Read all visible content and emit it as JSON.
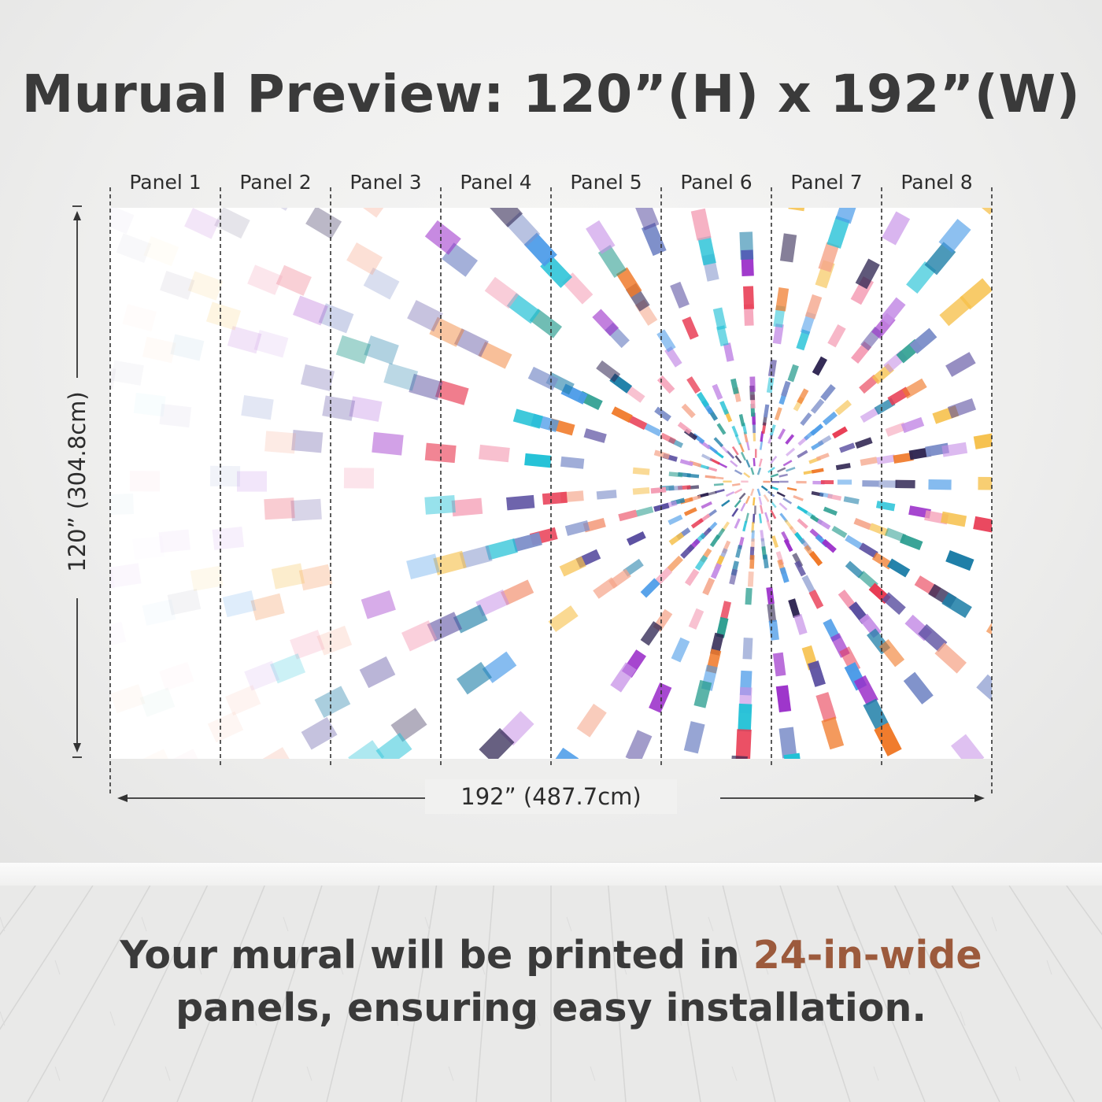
{
  "title": "Murual Preview: 120”(H) x 192”(W)",
  "panels": [
    {
      "label": "Panel 1"
    },
    {
      "label": "Panel 2"
    },
    {
      "label": "Panel 3"
    },
    {
      "label": "Panel 4"
    },
    {
      "label": "Panel 5"
    },
    {
      "label": "Panel 6"
    },
    {
      "label": "Panel 7"
    },
    {
      "label": "Panel 8"
    }
  ],
  "dimensions": {
    "height_label": "120” (304.8cm)",
    "width_label": "192” (487.7cm)"
  },
  "caption": {
    "part1": "Your mural will be printed in ",
    "highlight": "24-in-wide",
    "part2": " panels, ensuring easy installation."
  },
  "colors": {
    "text": "#3a3a3a",
    "accent": "#9c5a3c",
    "palette": [
      "#9b2fc9",
      "#e83a52",
      "#1f7fa8",
      "#f07a2a",
      "#2d2350",
      "#f6c04a",
      "#22c1d6",
      "#7d8fc9",
      "#f5a58a",
      "#c58ee6",
      "#4b9be8",
      "#f49cb4",
      "#2a9d8f",
      "#5a4fa0"
    ]
  }
}
